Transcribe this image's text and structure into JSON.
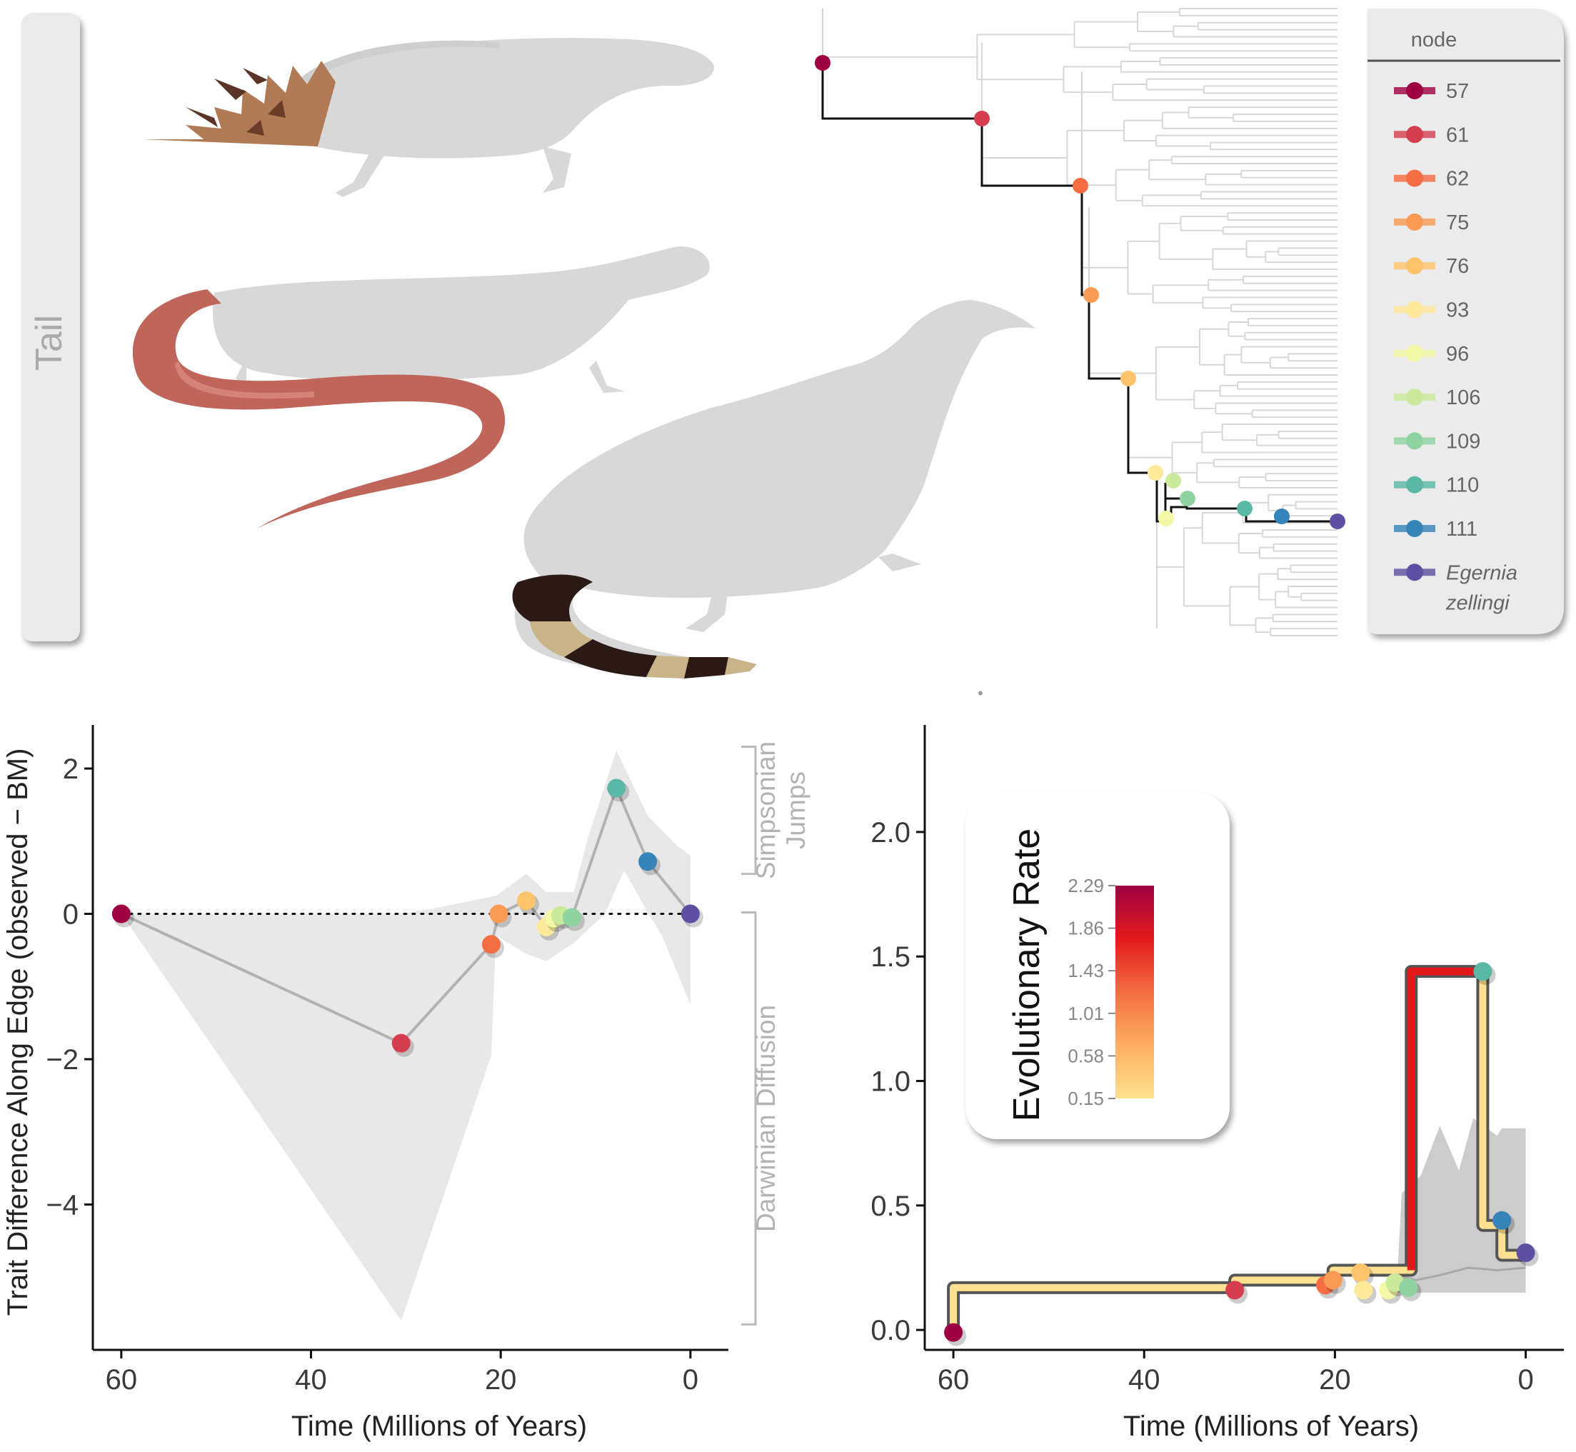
{
  "panel_label": "Tail",
  "legend": {
    "title": "node",
    "items": [
      {
        "label": "57",
        "color": "#9e0142",
        "italic": false
      },
      {
        "label": "61",
        "color": "#d53e4f",
        "italic": false
      },
      {
        "label": "62",
        "color": "#f46d43",
        "italic": false
      },
      {
        "label": "75",
        "color": "#fb9a55",
        "italic": false
      },
      {
        "label": "76",
        "color": "#fdc46b",
        "italic": false
      },
      {
        "label": "93",
        "color": "#fee89a",
        "italic": false
      },
      {
        "label": "96",
        "color": "#f2f8a6",
        "italic": false
      },
      {
        "label": "106",
        "color": "#cbe99a",
        "italic": false
      },
      {
        "label": "109",
        "color": "#8fd3a0",
        "italic": false
      },
      {
        "label": "110",
        "color": "#5cb8a6",
        "italic": false
      },
      {
        "label": "111",
        "color": "#3784bb",
        "italic": false
      },
      {
        "label": "Egernia",
        "label2": "zellingi",
        "color": "#5e4fa2",
        "italic": true
      }
    ]
  },
  "tree": {
    "highlight_nodes": [
      "57",
      "61",
      "62",
      "75",
      "76",
      "93",
      "96",
      "106",
      "109",
      "110",
      "111",
      "Egernia zellingi"
    ]
  },
  "bottom_dot": "•",
  "chart_data": [
    {
      "type": "line",
      "title": "",
      "xlabel": "Time (Millions of Years)",
      "ylabel": "Trait Difference Along Edge (observed − BM)",
      "x_reversed": true,
      "xlim": [
        63,
        -4
      ],
      "ylim": [
        -6.0,
        2.6
      ],
      "xticks": [
        60,
        40,
        20,
        0
      ],
      "xtick_labels": [
        "60",
        "40",
        "20",
        "0"
      ],
      "yticks": [
        2,
        0,
        -2,
        -4
      ],
      "ytick_labels": [
        "2",
        "0",
        "−2",
        "−4"
      ],
      "reference_line": {
        "y": 0,
        "style": "dotted"
      },
      "brackets": [
        {
          "label_lines": [
            "Simpsonian",
            "Jumps"
          ],
          "y_range": [
            0.55,
            2.3
          ]
        },
        {
          "label_lines": [
            "Darwinian Diffusion"
          ],
          "y_range": [
            -5.65,
            0.02
          ]
        }
      ],
      "series": [
        {
          "points": [
            {
              "node": "57",
              "x": 60.0,
              "y": 0.0
            },
            {
              "node": "61",
              "x": 30.5,
              "y": -1.78
            },
            {
              "node": "62",
              "x": 21.0,
              "y": -0.42
            },
            {
              "node": "75",
              "x": 20.2,
              "y": 0.0
            },
            {
              "node": "76",
              "x": 17.3,
              "y": 0.18
            },
            {
              "node": "93",
              "x": 15.2,
              "y": -0.18
            },
            {
              "node": "96",
              "x": 14.4,
              "y": -0.06
            },
            {
              "node": "106",
              "x": 13.7,
              "y": -0.02
            },
            {
              "node": "109",
              "x": 12.5,
              "y": -0.05
            },
            {
              "node": "110",
              "x": 7.8,
              "y": 1.73
            },
            {
              "node": "111",
              "x": 4.5,
              "y": 0.72
            },
            {
              "node": "Egernia zellingi",
              "x": 0.0,
              "y": 0.0
            }
          ]
        }
      ],
      "band": {
        "upper": [
          [
            60,
            0.0
          ],
          [
            30.5,
            0.0
          ],
          [
            28,
            0.05
          ],
          [
            20.5,
            0.25
          ],
          [
            17.3,
            0.55
          ],
          [
            15.2,
            0.3
          ],
          [
            12.3,
            0.3
          ],
          [
            10.8,
            1.05
          ],
          [
            7.8,
            2.25
          ],
          [
            4.5,
            1.35
          ],
          [
            1.5,
            0.95
          ],
          [
            0,
            0.8
          ]
        ],
        "lower": [
          [
            0,
            -1.25
          ],
          [
            3.0,
            -0.3
          ],
          [
            4.5,
            0.02
          ],
          [
            7.0,
            0.6
          ],
          [
            9.0,
            0.0
          ],
          [
            12.3,
            -0.4
          ],
          [
            15.2,
            -0.65
          ],
          [
            17.3,
            -0.55
          ],
          [
            20.5,
            -0.3
          ],
          [
            21.0,
            -1.95
          ],
          [
            30.5,
            -5.6
          ],
          [
            60,
            0.0
          ]
        ]
      }
    },
    {
      "type": "line",
      "title": "",
      "xlabel": "Time (Millions of Years)",
      "ylabel": "",
      "x_reversed": true,
      "xlim": [
        63,
        -4
      ],
      "ylim": [
        -0.08,
        2.43
      ],
      "xticks": [
        60,
        40,
        20,
        0
      ],
      "xtick_labels": [
        "60",
        "40",
        "20",
        "0"
      ],
      "yticks": [
        0.0,
        0.5,
        1.0,
        1.5,
        2.0
      ],
      "ytick_labels": [
        "0.0",
        "0.5",
        "1.0",
        "1.5",
        "2.0"
      ],
      "colorbar": {
        "title": "Evolutionary Rate",
        "tick_labels": [
          "2.29",
          "1.86",
          "1.43",
          "1.01",
          "0.58",
          "0.15"
        ],
        "colors": [
          "#9e0142",
          "#e31a1c",
          "#f46d43",
          "#fdae61",
          "#fee090"
        ]
      },
      "steps": [
        {
          "x0": 60.0,
          "x1": 30.5,
          "y": 0.17,
          "rate": 0.3
        },
        {
          "x0": 30.5,
          "x1": 21.0,
          "y": 0.2,
          "rate": 0.3
        },
        {
          "x0": 21.0,
          "x1": 20.2,
          "y": 0.2,
          "rate": 0.3
        },
        {
          "x0": 20.2,
          "x1": 12.0,
          "y": 0.24,
          "rate": 0.3
        },
        {
          "x0": 12.0,
          "x1": 4.5,
          "y": 1.44,
          "rate": 1.6
        },
        {
          "x0": 4.5,
          "x1": 2.5,
          "y": 0.42,
          "rate": 0.3
        },
        {
          "x0": 2.5,
          "x1": 0.0,
          "y": 0.3,
          "rate": 0.3
        }
      ],
      "points": [
        {
          "node": "57",
          "x": 60.0,
          "y": -0.01
        },
        {
          "node": "61",
          "x": 30.5,
          "y": 0.16
        },
        {
          "node": "62",
          "x": 21.0,
          "y": 0.18
        },
        {
          "node": "75",
          "x": 20.2,
          "y": 0.2
        },
        {
          "node": "76",
          "x": 17.3,
          "y": 0.23
        },
        {
          "node": "93",
          "x": 17.0,
          "y": 0.16
        },
        {
          "node": "96",
          "x": 14.4,
          "y": 0.16
        },
        {
          "node": "106",
          "x": 13.7,
          "y": 0.19
        },
        {
          "node": "109",
          "x": 12.3,
          "y": 0.17
        },
        {
          "node": "110",
          "x": 4.5,
          "y": 1.44
        },
        {
          "node": "111",
          "x": 2.5,
          "y": 0.44
        },
        {
          "node": "Egernia zellingi",
          "x": 0.0,
          "y": 0.31
        }
      ],
      "band": {
        "upper": [
          [
            13.5,
            0.18
          ],
          [
            13.0,
            0.55
          ],
          [
            11.0,
            0.62
          ],
          [
            9.0,
            0.82
          ],
          [
            7.0,
            0.64
          ],
          [
            5.5,
            0.85
          ],
          [
            3.0,
            0.78
          ],
          [
            2.5,
            0.81
          ],
          [
            0,
            0.81
          ]
        ],
        "lower": [
          [
            0,
            0.15
          ],
          [
            13.5,
            0.15
          ]
        ]
      },
      "median_line": [
        [
          13.5,
          0.22
        ],
        [
          11.5,
          0.2
        ],
        [
          9.0,
          0.22
        ],
        [
          6.0,
          0.25
        ],
        [
          3.0,
          0.24
        ],
        [
          0,
          0.25
        ]
      ]
    }
  ]
}
